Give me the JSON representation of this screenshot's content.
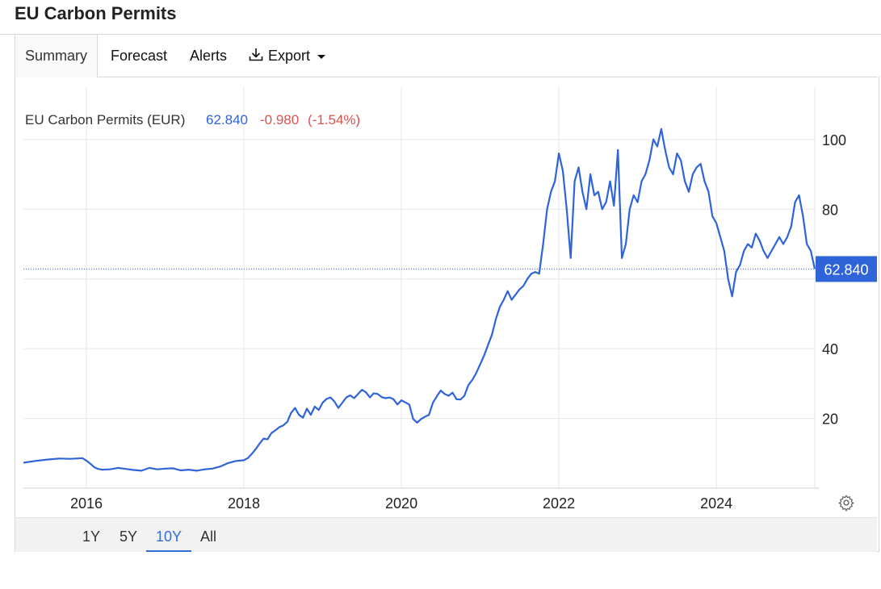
{
  "page": {
    "title": "EU Carbon Permits"
  },
  "tabs": [
    {
      "label": "Summary",
      "active": true
    },
    {
      "label": "Forecast"
    },
    {
      "label": "Alerts"
    },
    {
      "label": "Export",
      "icon": "download-icon"
    }
  ],
  "legend": {
    "name": "EU Carbon Permits (EUR)",
    "value": "62.840",
    "change": "-0.980",
    "change_pct": "(-1.54%)"
  },
  "last_price_label": "62.840",
  "range_buttons": [
    {
      "label": "1Y"
    },
    {
      "label": "5Y"
    },
    {
      "label": "10Y",
      "active": true
    },
    {
      "label": "All"
    }
  ],
  "settings_icon": "gear-icon",
  "colors": {
    "line": "#2f64d9",
    "price_tag": "#2f64d9",
    "positive": "#2f64d9",
    "negative": "#d9534f",
    "grid": "#e6e6e6",
    "active_range": "#2f6fd6"
  },
  "chart_data": {
    "type": "line",
    "title": "EU Carbon Permits (EUR)",
    "xlabel": "",
    "ylabel": "",
    "xlim": [
      2015.2,
      2025.25
    ],
    "ylim": [
      0,
      115
    ],
    "y_axis_position": "right",
    "x_ticks": [
      2016,
      2018,
      2020,
      2022,
      2024
    ],
    "x_tick_labels": [
      "2016",
      "2018",
      "2020",
      "2022",
      "2024"
    ],
    "y_ticks": [
      20,
      40,
      60,
      80,
      100
    ],
    "y_tick_labels": [
      "20",
      "40",
      "",
      "80",
      "100"
    ],
    "grid": true,
    "last_value": 62.84,
    "series": [
      {
        "name": "EU Carbon Permits (EUR)",
        "x": [
          2015.2,
          2015.35,
          2015.5,
          2015.65,
          2015.8,
          2015.95,
          2016.0,
          2016.05,
          2016.1,
          2016.15,
          2016.2,
          2016.3,
          2016.4,
          2016.5,
          2016.6,
          2016.7,
          2016.8,
          2016.9,
          2017.0,
          2017.1,
          2017.2,
          2017.3,
          2017.4,
          2017.5,
          2017.6,
          2017.7,
          2017.8,
          2017.9,
          2018.0,
          2018.05,
          2018.1,
          2018.15,
          2018.2,
          2018.25,
          2018.3,
          2018.35,
          2018.4,
          2018.45,
          2018.5,
          2018.55,
          2018.6,
          2018.65,
          2018.7,
          2018.75,
          2018.8,
          2018.85,
          2018.9,
          2018.95,
          2019.0,
          2019.05,
          2019.1,
          2019.15,
          2019.2,
          2019.25,
          2019.3,
          2019.35,
          2019.4,
          2019.45,
          2019.5,
          2019.55,
          2019.6,
          2019.65,
          2019.7,
          2019.75,
          2019.8,
          2019.85,
          2019.9,
          2019.95,
          2020.0,
          2020.05,
          2020.1,
          2020.15,
          2020.2,
          2020.25,
          2020.3,
          2020.35,
          2020.4,
          2020.45,
          2020.5,
          2020.55,
          2020.6,
          2020.65,
          2020.7,
          2020.75,
          2020.8,
          2020.85,
          2020.9,
          2020.95,
          2021.0,
          2021.05,
          2021.1,
          2021.15,
          2021.2,
          2021.25,
          2021.3,
          2021.35,
          2021.4,
          2021.45,
          2021.5,
          2021.55,
          2021.6,
          2021.65,
          2021.7,
          2021.75,
          2021.8,
          2021.85,
          2021.9,
          2021.95,
          2022.0,
          2022.05,
          2022.1,
          2022.15,
          2022.2,
          2022.25,
          2022.3,
          2022.35,
          2022.4,
          2022.45,
          2022.5,
          2022.55,
          2022.6,
          2022.65,
          2022.7,
          2022.75,
          2022.8,
          2022.85,
          2022.9,
          2022.95,
          2023.0,
          2023.05,
          2023.1,
          2023.15,
          2023.2,
          2023.25,
          2023.3,
          2023.35,
          2023.4,
          2023.45,
          2023.5,
          2023.55,
          2023.6,
          2023.65,
          2023.7,
          2023.75,
          2023.8,
          2023.85,
          2023.9,
          2023.95,
          2024.0,
          2024.05,
          2024.1,
          2024.15,
          2024.2,
          2024.25,
          2024.3,
          2024.35,
          2024.4,
          2024.45,
          2024.5,
          2024.55,
          2024.6,
          2024.65,
          2024.7,
          2024.75,
          2024.8,
          2024.85,
          2024.9,
          2024.95,
          2025.0,
          2025.05,
          2025.1,
          2025.15,
          2025.2,
          2025.25
        ],
        "values": [
          7.3,
          7.8,
          8.2,
          8.5,
          8.4,
          8.6,
          7.9,
          7.0,
          6.0,
          5.5,
          5.3,
          5.4,
          5.8,
          5.5,
          5.2,
          5.0,
          5.8,
          5.4,
          5.6,
          5.7,
          5.1,
          5.3,
          5.0,
          5.4,
          5.6,
          6.2,
          7.2,
          7.8,
          8.0,
          8.6,
          9.8,
          11.2,
          12.8,
          14.2,
          14.0,
          15.8,
          16.6,
          17.5,
          18.0,
          19.0,
          21.6,
          23.0,
          21.0,
          20.2,
          22.8,
          21.0,
          23.4,
          22.4,
          24.5,
          25.6,
          26.0,
          24.8,
          23.0,
          24.5,
          26.0,
          26.6,
          25.8,
          27.0,
          28.2,
          27.5,
          26.0,
          27.2,
          27.0,
          26.1,
          25.8,
          26.0,
          25.5,
          24.0,
          25.2,
          24.6,
          24.0,
          19.8,
          18.8,
          19.8,
          20.5,
          21.0,
          24.5,
          26.3,
          28.0,
          27.0,
          26.5,
          27.4,
          25.5,
          25.4,
          26.5,
          29.5,
          31.0,
          33.0,
          35.5,
          38.0,
          41.0,
          44.0,
          48.5,
          52.0,
          54.0,
          56.5,
          54.0,
          55.5,
          57.0,
          58.0,
          60.0,
          61.5,
          62.0,
          61.5,
          70.0,
          80.0,
          85.0,
          88.0,
          96.0,
          91.0,
          80.0,
          66.0,
          88.0,
          92.0,
          85.0,
          80.0,
          90.0,
          84.0,
          85.0,
          80.0,
          82.0,
          88.0,
          81.0,
          97.0,
          66.0,
          70.0,
          80.0,
          84.0,
          82.0,
          88.0,
          90.0,
          94.0,
          100.0,
          98.0,
          103.0,
          97.0,
          92.0,
          90.0,
          96.0,
          94.0,
          88.0,
          85.0,
          90.0,
          92.0,
          93.0,
          88.0,
          85.0,
          78.0,
          76.0,
          72.0,
          68.0,
          60.0,
          55.0,
          62.0,
          64.0,
          68.0,
          70.0,
          69.0,
          73.0,
          71.0,
          68.0,
          66.0,
          68.0,
          70.0,
          72.0,
          70.0,
          72.0,
          75.0,
          82.0,
          84.0,
          78.0,
          70.0,
          68.0,
          62.84
        ]
      }
    ]
  }
}
